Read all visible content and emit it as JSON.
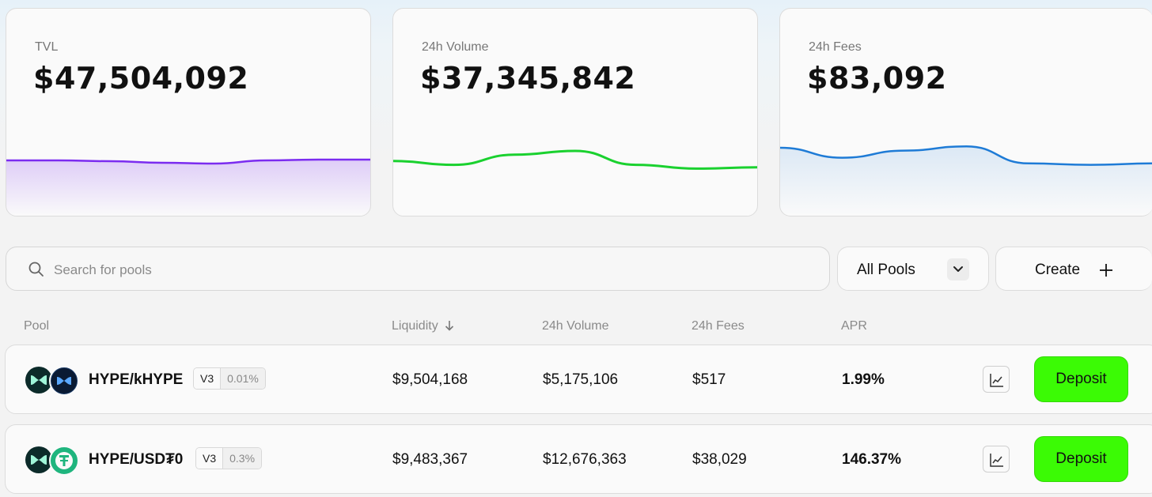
{
  "stats": [
    {
      "label": "TVL",
      "value": "$47,504,092",
      "color": "#7b2cf0",
      "series": [
        50,
        50,
        49.9,
        49.7,
        49.6,
        50,
        50.1,
        50.1
      ]
    },
    {
      "label": "24h Volume",
      "value": "$37,345,842",
      "color": "#1ad12f",
      "series": [
        47,
        44,
        52,
        55,
        44,
        41,
        42
      ]
    },
    {
      "label": "24h Fees",
      "value": "$83,092",
      "color": "#1e7bd6",
      "series": [
        55,
        48,
        53,
        56,
        44,
        43,
        44
      ]
    }
  ],
  "search": {
    "placeholder": "Search for pools"
  },
  "filter": {
    "selected": "All Pools"
  },
  "create": {
    "label": "Create"
  },
  "columns": {
    "pool": "Pool",
    "liquidity": "Liquidity",
    "volume": "24h Volume",
    "fees": "24h Fees",
    "apr": "APR"
  },
  "rows": [
    {
      "pair": "HYPE/kHYPE",
      "version": "V3",
      "fee": "0.01%",
      "liquidity": "$9,504,168",
      "volume": "$5,175,106",
      "fees": "$517",
      "apr": "1.99%",
      "action": "Deposit"
    },
    {
      "pair": "HYPE/USD₮0",
      "version": "V3",
      "fee": "0.3%",
      "liquidity": "$9,483,367",
      "volume": "$12,676,363",
      "fees": "$38,029",
      "apr": "146.37%",
      "action": "Deposit"
    }
  ],
  "colors": {
    "accent": "#3bfb05",
    "tvl": "#7b2cf0",
    "volume": "#1ad12f",
    "fees": "#1e7bd6"
  }
}
